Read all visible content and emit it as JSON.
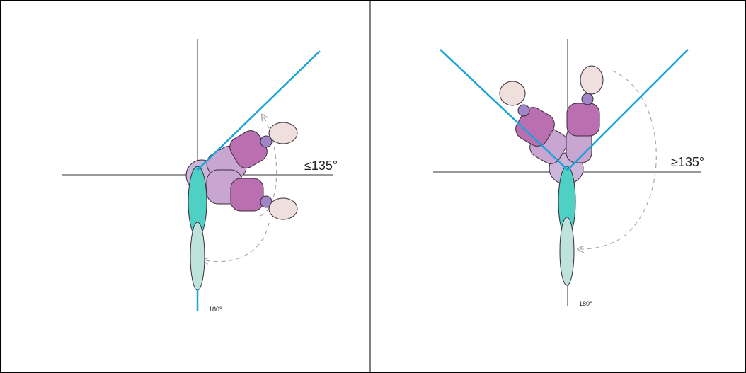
{
  "panels": [
    {
      "angle_label": "≤135°",
      "bottom_label": "180°"
    },
    {
      "angle_label": "≥135°",
      "bottom_label": "180°"
    }
  ]
}
